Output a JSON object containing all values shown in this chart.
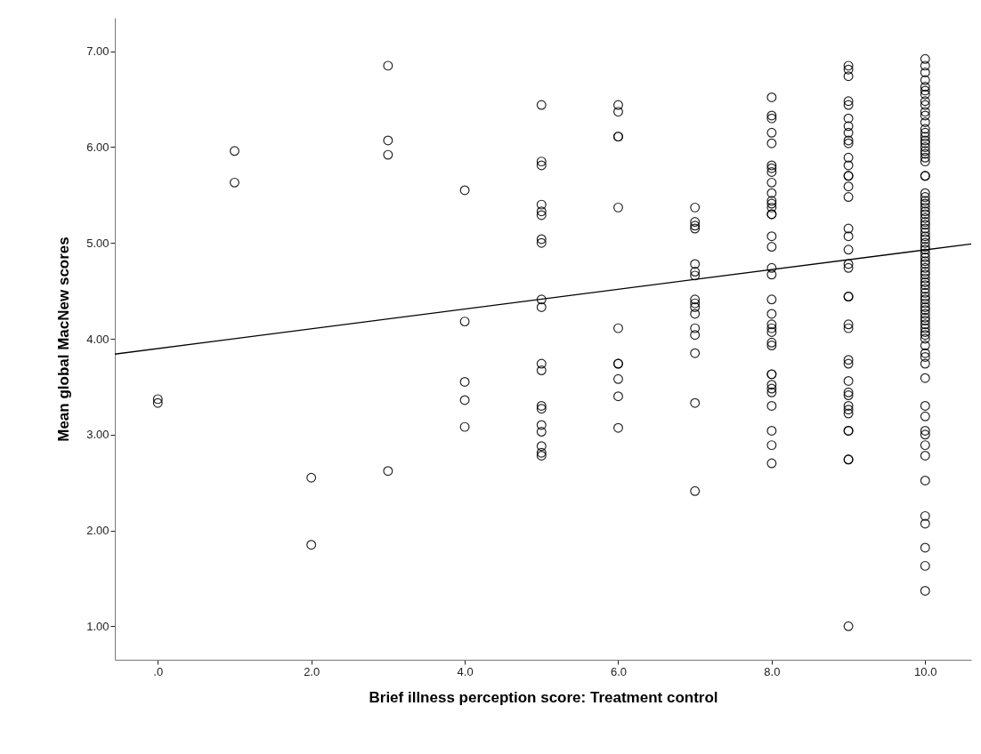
{
  "chart_data": {
    "type": "scatter",
    "xlabel": "Brief illness perception score: Treatment control",
    "ylabel": "Mean global MacNew scores",
    "xlim": [
      -0.56,
      10.6
    ],
    "ylim": [
      0.65,
      7.35
    ],
    "xticks": [
      {
        "value": 0,
        "label": ".0"
      },
      {
        "value": 2,
        "label": "2.0"
      },
      {
        "value": 4,
        "label": "4.0"
      },
      {
        "value": 6,
        "label": "6.0"
      },
      {
        "value": 8,
        "label": "8.0"
      },
      {
        "value": 10,
        "label": "10.0"
      }
    ],
    "yticks": [
      {
        "value": 1,
        "label": "1.00"
      },
      {
        "value": 2,
        "label": "2.00"
      },
      {
        "value": 3,
        "label": "3.00"
      },
      {
        "value": 4,
        "label": "4.00"
      },
      {
        "value": 5,
        "label": "5.00"
      },
      {
        "value": 6,
        "label": "6.00"
      },
      {
        "value": 7,
        "label": "7.00"
      }
    ],
    "marker": "circle",
    "series": [
      {
        "color": "#000000",
        "x": [
          0,
          0,
          1,
          1,
          2,
          2,
          3,
          3,
          3,
          3,
          4,
          4,
          4,
          4,
          4,
          5,
          5,
          5,
          5,
          5,
          5,
          5,
          5,
          5,
          5,
          5,
          5,
          5,
          5,
          5,
          5,
          5,
          5,
          5,
          6,
          6,
          6,
          6,
          6,
          6,
          6,
          6,
          6,
          6,
          6,
          7,
          7,
          7,
          7,
          7,
          7,
          7,
          7,
          7,
          7,
          7,
          7,
          7,
          7,
          7,
          7,
          8,
          8,
          8,
          8,
          8,
          8,
          8,
          8,
          8,
          8,
          8,
          8,
          8,
          8,
          8,
          8,
          8,
          8,
          8,
          8,
          8,
          8,
          8,
          8,
          8,
          8,
          8,
          8,
          8,
          8,
          8,
          8,
          8,
          8,
          8,
          9,
          9,
          9,
          9,
          9,
          9,
          9,
          9,
          9,
          9,
          9,
          9,
          9,
          9,
          9,
          9,
          9,
          9,
          9,
          9,
          9,
          9,
          9,
          9,
          9,
          9,
          9,
          9,
          9,
          9,
          9,
          9,
          9,
          9,
          9,
          9,
          9,
          9,
          10,
          10,
          10,
          10,
          10,
          10,
          10,
          10,
          10,
          10,
          10,
          10,
          10,
          10,
          10,
          10,
          10,
          10,
          10,
          10,
          10,
          10,
          10,
          10,
          10,
          10,
          10,
          10,
          10,
          10,
          10,
          10,
          10,
          10,
          10,
          10,
          10,
          10,
          10,
          10,
          10,
          10,
          10,
          10,
          10,
          10,
          10,
          10,
          10,
          10,
          10,
          10,
          10,
          10,
          10,
          10,
          10,
          10,
          10,
          10,
          10,
          10,
          10,
          10,
          10,
          10,
          10,
          10,
          10,
          10,
          10,
          10,
          10,
          10,
          10,
          10,
          10,
          10,
          10,
          10,
          10,
          10,
          10
        ],
        "values": [
          3.37,
          3.33,
          5.96,
          5.63,
          2.55,
          1.85,
          6.85,
          6.07,
          5.92,
          2.62,
          5.55,
          4.18,
          3.55,
          3.36,
          3.08,
          6.44,
          5.85,
          5.81,
          5.4,
          5.33,
          5.29,
          5.04,
          5.0,
          4.41,
          4.33,
          3.74,
          3.67,
          3.3,
          3.27,
          3.1,
          3.03,
          2.88,
          2.81,
          2.78,
          6.44,
          6.37,
          6.11,
          6.11,
          5.37,
          4.11,
          3.74,
          3.74,
          3.58,
          3.4,
          3.07,
          5.37,
          5.22,
          5.18,
          5.15,
          4.78,
          4.7,
          4.66,
          4.41,
          4.37,
          4.33,
          4.26,
          4.11,
          4.04,
          3.85,
          3.33,
          2.41,
          6.52,
          6.33,
          6.3,
          6.15,
          6.04,
          5.81,
          5.78,
          5.74,
          5.63,
          5.52,
          5.44,
          5.41,
          5.37,
          5.3,
          5.3,
          5.07,
          4.96,
          4.74,
          4.67,
          4.41,
          4.26,
          4.15,
          4.11,
          4.07,
          3.96,
          3.93,
          3.63,
          3.63,
          3.52,
          3.48,
          3.44,
          3.3,
          3.04,
          2.89,
          2.7,
          6.85,
          6.81,
          6.74,
          6.48,
          6.44,
          6.3,
          6.22,
          6.15,
          6.07,
          6.04,
          5.89,
          5.81,
          5.7,
          5.7,
          5.59,
          5.48,
          5.15,
          5.07,
          4.93,
          4.78,
          4.74,
          4.44,
          4.44,
          4.15,
          4.11,
          3.78,
          3.74,
          3.56,
          3.44,
          3.41,
          3.3,
          3.26,
          3.22,
          3.04,
          3.04,
          2.74,
          2.74,
          1.0,
          6.92,
          6.85,
          6.78,
          6.7,
          6.63,
          6.59,
          6.55,
          6.48,
          6.44,
          6.37,
          6.33,
          6.26,
          6.19,
          6.15,
          6.11,
          6.07,
          6.04,
          6.0,
          5.96,
          5.93,
          5.89,
          5.85,
          5.7,
          5.7,
          5.52,
          5.48,
          5.44,
          5.41,
          5.37,
          5.33,
          5.3,
          5.26,
          5.22,
          5.19,
          5.15,
          5.11,
          5.07,
          5.04,
          5.0,
          4.96,
          4.93,
          4.89,
          4.85,
          4.81,
          4.78,
          4.74,
          4.7,
          4.67,
          4.63,
          4.59,
          4.56,
          4.52,
          4.48,
          4.44,
          4.41,
          4.37,
          4.33,
          4.3,
          4.26,
          4.22,
          4.19,
          4.15,
          4.11,
          4.07,
          4.04,
          4.0,
          3.93,
          3.85,
          3.81,
          3.74,
          3.59,
          3.3,
          3.19,
          3.04,
          3.0,
          2.89,
          2.78,
          2.52,
          2.15,
          2.07,
          1.82,
          1.63,
          1.37
        ]
      },
      {
        "type": "line",
        "color": "#000000",
        "line_style": "solid",
        "marker": "none",
        "x": [
          -0.56,
          10.6
        ],
        "values": [
          3.84,
          4.99
        ]
      }
    ]
  }
}
